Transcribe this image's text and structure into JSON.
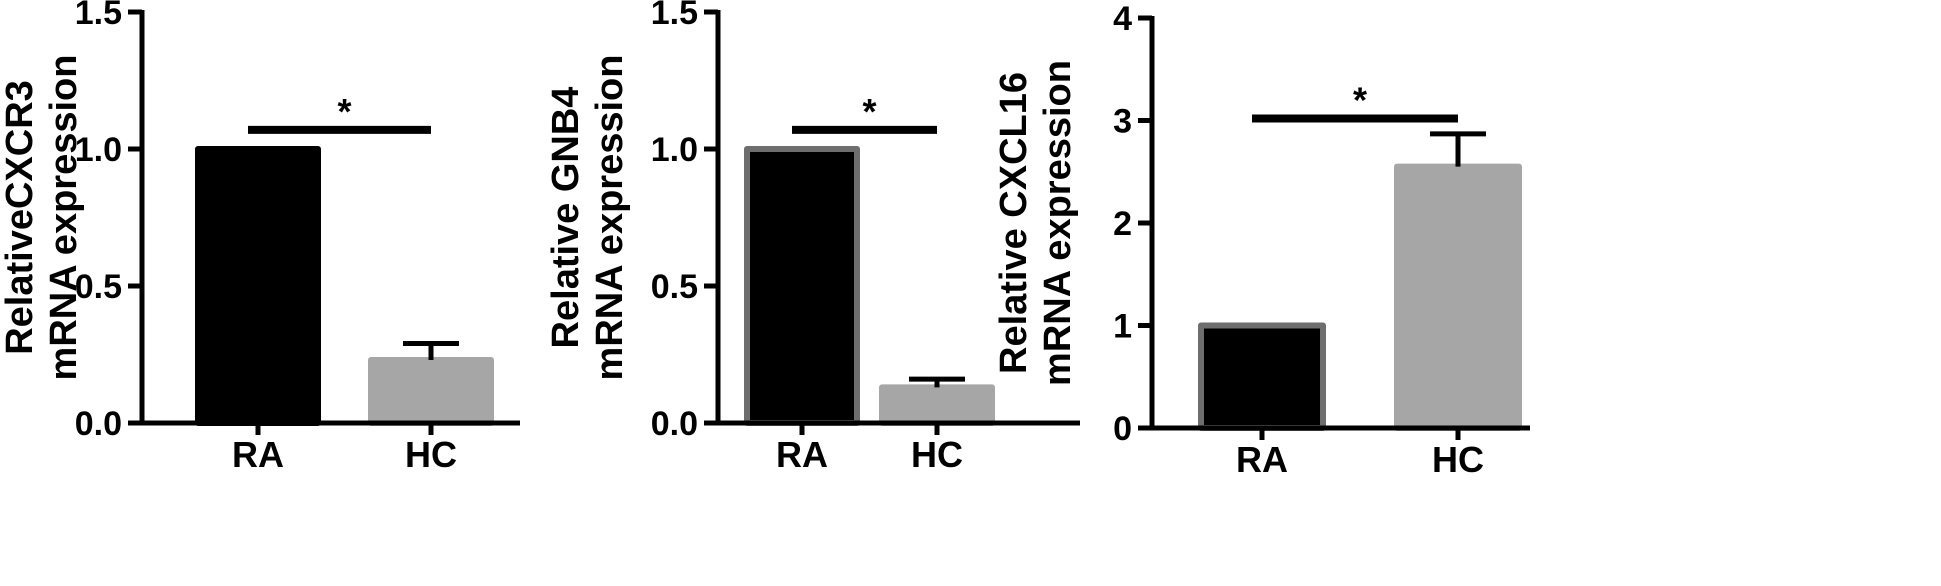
{
  "chart_data": [
    {
      "type": "bar",
      "title": "",
      "ylabel_lines": [
        "RelativeCXCR3",
        "mRNA expression"
      ],
      "categories": [
        "RA",
        "HC"
      ],
      "values": [
        1.0,
        0.23
      ],
      "error": [
        0,
        0.06
      ],
      "ylim": [
        0,
        1.5
      ],
      "yticks": [
        0,
        0.5,
        1.0,
        1.5
      ],
      "ytick_labels": [
        "0.0",
        "0.5",
        "1.0",
        "1.5"
      ],
      "significance": {
        "label": "*",
        "y": 1.07
      },
      "colors": [
        "#000000",
        "#a6a6a6"
      ],
      "edge_colors": [
        "#000000",
        "#a6a6a6"
      ]
    },
    {
      "type": "bar",
      "title": "",
      "ylabel_lines": [
        "Relative GNB4",
        "mRNA expression"
      ],
      "categories": [
        "RA",
        "HC"
      ],
      "values": [
        1.0,
        0.13
      ],
      "error": [
        0,
        0.03
      ],
      "ylim": [
        0,
        1.5
      ],
      "yticks": [
        0,
        0.5,
        1.0,
        1.5
      ],
      "ytick_labels": [
        "0.0",
        "0.5",
        "1.0",
        "1.5"
      ],
      "significance": {
        "label": "*",
        "y": 1.07
      },
      "colors": [
        "#000000",
        "#a6a6a6"
      ],
      "edge_colors": [
        "#6e6e6e",
        "#a6a6a6"
      ]
    },
    {
      "type": "bar",
      "title": "",
      "ylabel_lines": [
        "Relative CXCL16",
        "mRNA expression"
      ],
      "categories": [
        "RA",
        "HC"
      ],
      "values": [
        1.0,
        2.55
      ],
      "error": [
        0,
        0.32
      ],
      "ylim": [
        0,
        4
      ],
      "yticks": [
        0,
        1,
        2,
        3,
        4
      ],
      "ytick_labels": [
        "0",
        "1",
        "2",
        "3",
        "4"
      ],
      "significance": {
        "label": "*",
        "y": 3.02
      },
      "colors": [
        "#000000",
        "#a6a6a6"
      ],
      "edge_colors": [
        "#6e6e6e",
        "#a6a6a6"
      ]
    }
  ]
}
